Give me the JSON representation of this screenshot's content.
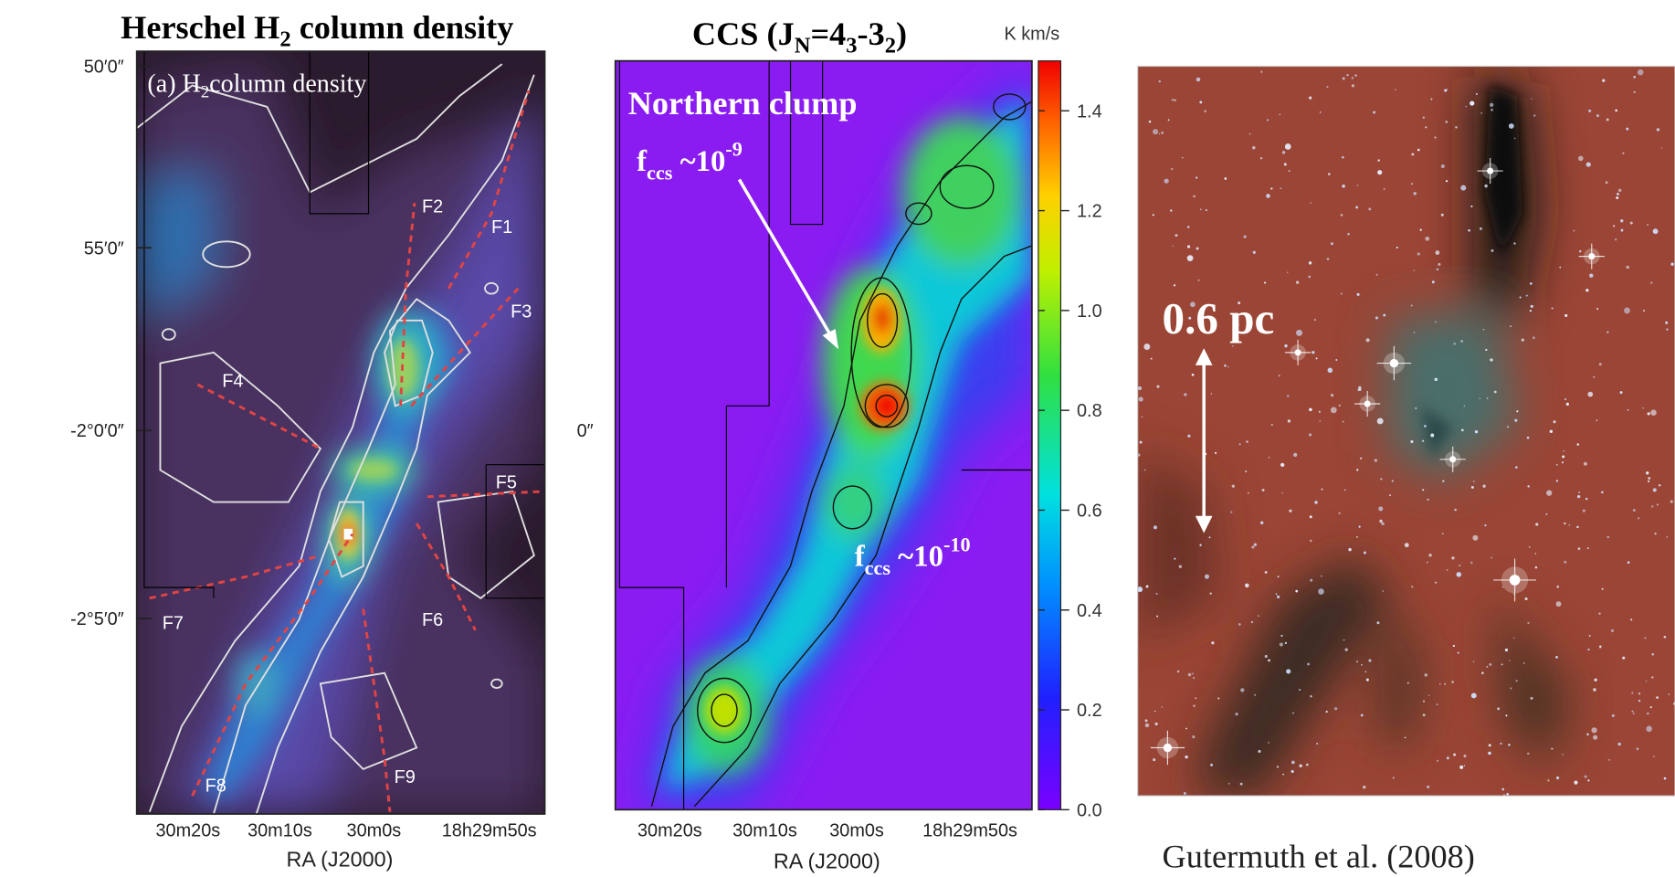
{
  "panel_a": {
    "title": [
      "Herschel H",
      "2",
      " column density"
    ],
    "inset_label": [
      "(a) H",
      "2",
      "column density"
    ],
    "y_labels": [
      "50′0″",
      "55′0″",
      "-2°0′0″",
      "-2°5′0″"
    ],
    "x_labels": [
      "30m20s",
      "30m10s",
      "30m0s",
      "18h29m50s"
    ],
    "x_axis_label": "RA (J2000)",
    "filaments": [
      "F1",
      "F2",
      "F3",
      "F4",
      "F5",
      "F6",
      "F7",
      "F8",
      "F9"
    ]
  },
  "panel_b": {
    "title": [
      "CCS (J",
      "N",
      "=4",
      "3",
      "-3",
      "2",
      ")"
    ],
    "colorbar_unit": "K km/s",
    "colorbar_range": [
      0,
      1.5
    ],
    "colorbar_ticks": [
      {
        "value": 0,
        "label": "0.0"
      },
      {
        "value": 0.2,
        "label": "0.2"
      },
      {
        "value": 0.4,
        "label": "0.4"
      },
      {
        "value": 0.6,
        "label": "0.6"
      },
      {
        "value": 0.8,
        "label": "0.8"
      },
      {
        "value": 1,
        "label": "1.0"
      },
      {
        "value": 1.2,
        "label": "1.2"
      },
      {
        "value": 1.4,
        "label": "1.4"
      }
    ],
    "clipped_y_label": "0″",
    "x_labels": [
      "30m20s",
      "30m10s",
      "30m0s",
      "18h29m50s"
    ],
    "x_axis_label": "RA (J2000)",
    "annotation_clump": "Northern clump",
    "annotation_north": [
      "f",
      "ccs",
      " ~10",
      "-9"
    ],
    "annotation_south": [
      "f",
      "ccs",
      " ~10",
      "-10"
    ]
  },
  "panel_c": {
    "scale_label": "0.6 pc",
    "credit": "Gutermuth et al. (2008)"
  }
}
